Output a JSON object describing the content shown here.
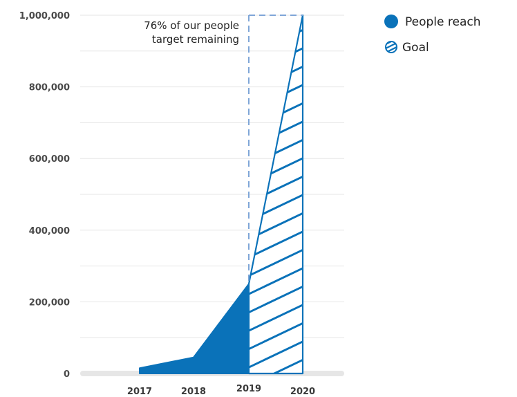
{
  "chart_data": {
    "type": "area",
    "title": "",
    "xlabel": "",
    "ylabel": "",
    "x": [
      "2017",
      "2018",
      "2019",
      "2020"
    ],
    "y_ticks": [
      {
        "value": 0,
        "label": "0"
      },
      {
        "value": 200000,
        "label": "200,000"
      },
      {
        "value": 400000,
        "label": "400,000"
      },
      {
        "value": 600000,
        "label": "600,000"
      },
      {
        "value": 800000,
        "label": "800,000"
      },
      {
        "value": 1000000,
        "label": "1,000,000"
      }
    ],
    "ylim": [
      0,
      1000000
    ],
    "grid": true,
    "legend_position": "top-right",
    "series": [
      {
        "name": "People reach",
        "style": "solid",
        "color": "#0a72b9",
        "values": [
          15000,
          45000,
          250000,
          null
        ]
      },
      {
        "name": "Goal",
        "style": "hatched",
        "color": "#0a72b9",
        "values": [
          null,
          null,
          250000,
          1000000
        ]
      }
    ],
    "target_box_color": "#7fa6d8",
    "annotation": {
      "lines": [
        "76% of our people",
        "target remaining"
      ],
      "anchor": "top-left-of-target-box"
    }
  }
}
